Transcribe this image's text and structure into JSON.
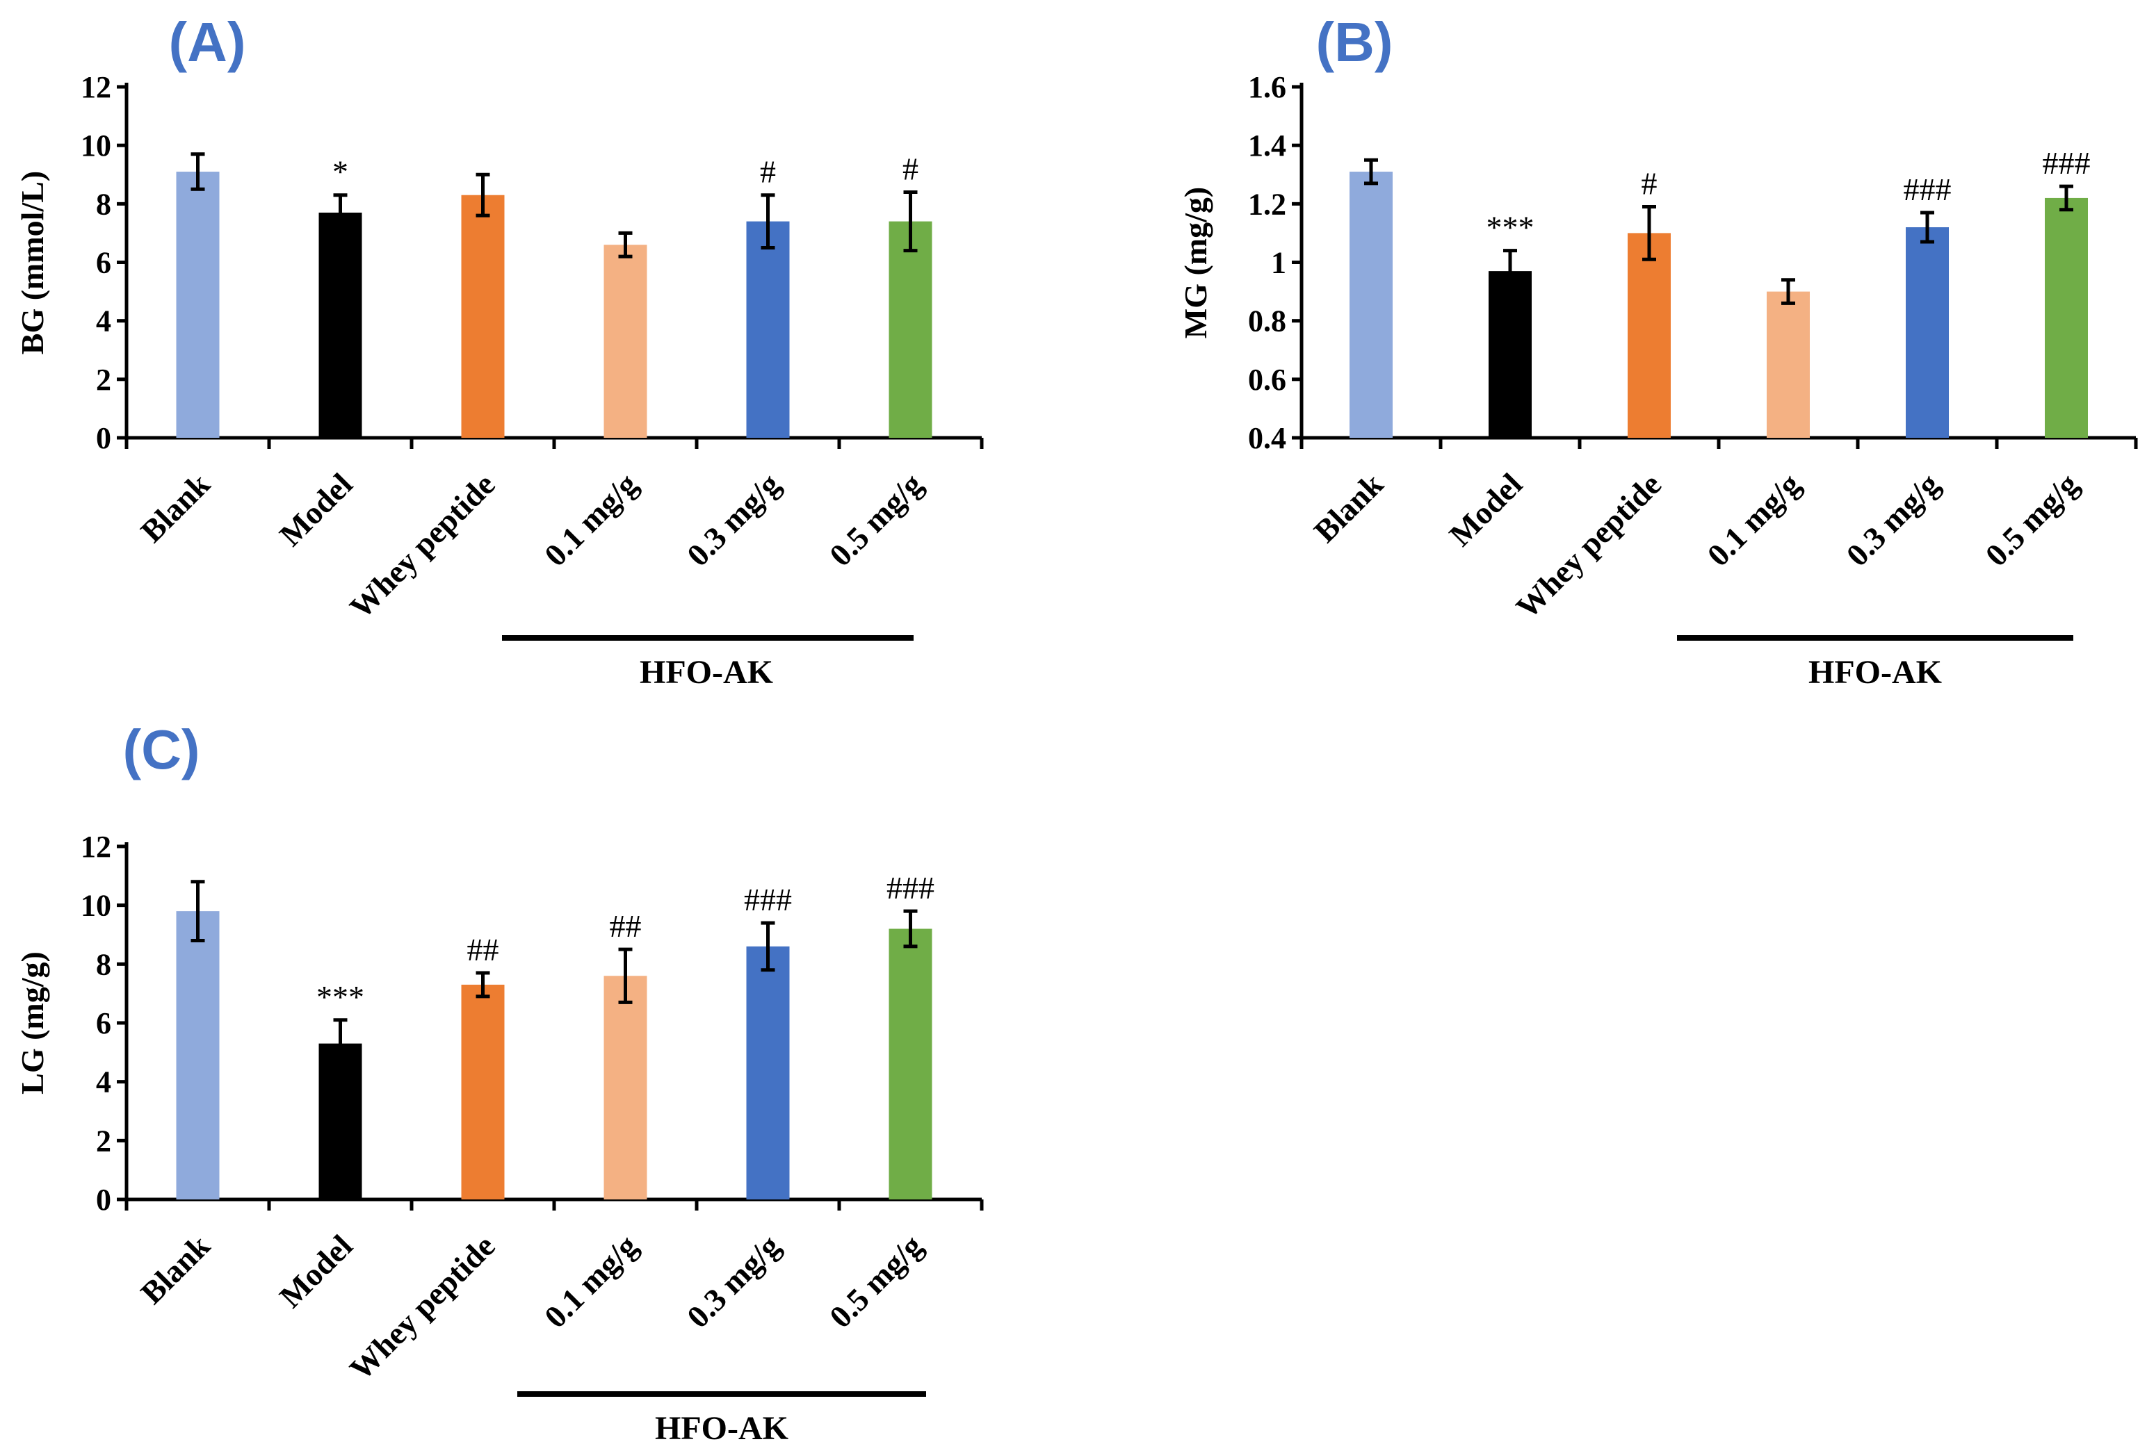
{
  "colors": {
    "panel_label": "#4472c4",
    "bars": [
      "#8faadc",
      "#000000",
      "#ed7d31",
      "#f4b183",
      "#4472c4",
      "#70ad47"
    ]
  },
  "chart_data": [
    {
      "panel": "(A)",
      "type": "bar",
      "ylabel": "BG (mmol/L)",
      "categories": [
        "Blank",
        "Model",
        "Whey peptide",
        "0.1 mg/g",
        "0.3 mg/g",
        "0.5 mg/g"
      ],
      "values": [
        9.1,
        7.7,
        8.3,
        6.6,
        7.4,
        7.4
      ],
      "errors": [
        0.6,
        0.6,
        0.7,
        0.4,
        0.9,
        1.0
      ],
      "significance": [
        "",
        "*",
        "",
        "",
        "#",
        "#"
      ],
      "ylim": [
        0,
        12
      ],
      "yticks": [
        0,
        2,
        4,
        6,
        8,
        10,
        12
      ],
      "ytick_labels": [
        "0",
        "2",
        "4",
        "6",
        "8",
        "10",
        "12"
      ],
      "group_label": "HFO-AK",
      "group_span": [
        3,
        5
      ]
    },
    {
      "panel": "(B)",
      "type": "bar",
      "ylabel": "MG (mg/g)",
      "categories": [
        "Blank",
        "Model",
        "Whey peptide",
        "0.1 mg/g",
        "0.3 mg/g",
        "0.5 mg/g"
      ],
      "values": [
        1.31,
        0.97,
        1.1,
        0.9,
        1.12,
        1.22
      ],
      "errors": [
        0.04,
        0.07,
        0.09,
        0.04,
        0.05,
        0.04
      ],
      "significance": [
        "",
        "***",
        "#",
        "",
        "###",
        "###"
      ],
      "ylim": [
        0.4,
        1.6
      ],
      "yticks": [
        0.4,
        0.6,
        0.8,
        1.0,
        1.2,
        1.4,
        1.6
      ],
      "ytick_labels": [
        "0.4",
        "0.6",
        "0.8",
        "1",
        "1.2",
        "1.4",
        "1.6"
      ],
      "group_label": "HFO-AK",
      "group_span": [
        3,
        5
      ]
    },
    {
      "panel": "(C)",
      "type": "bar",
      "ylabel": "LG (mg/g)",
      "categories": [
        "Blank",
        "Model",
        "Whey peptide",
        "0.1 mg/g",
        "0.3 mg/g",
        "0.5 mg/g"
      ],
      "values": [
        9.8,
        5.3,
        7.3,
        7.6,
        8.6,
        9.2
      ],
      "errors": [
        1.0,
        0.8,
        0.4,
        0.9,
        0.8,
        0.6
      ],
      "significance": [
        "",
        "***",
        "##",
        "##",
        "###",
        "###"
      ],
      "ylim": [
        0,
        12
      ],
      "yticks": [
        0,
        2,
        4,
        6,
        8,
        10,
        12
      ],
      "ytick_labels": [
        "0",
        "2",
        "4",
        "6",
        "8",
        "10",
        "12"
      ],
      "group_label": "HFO-AK",
      "group_span": [
        3,
        5
      ]
    }
  ]
}
